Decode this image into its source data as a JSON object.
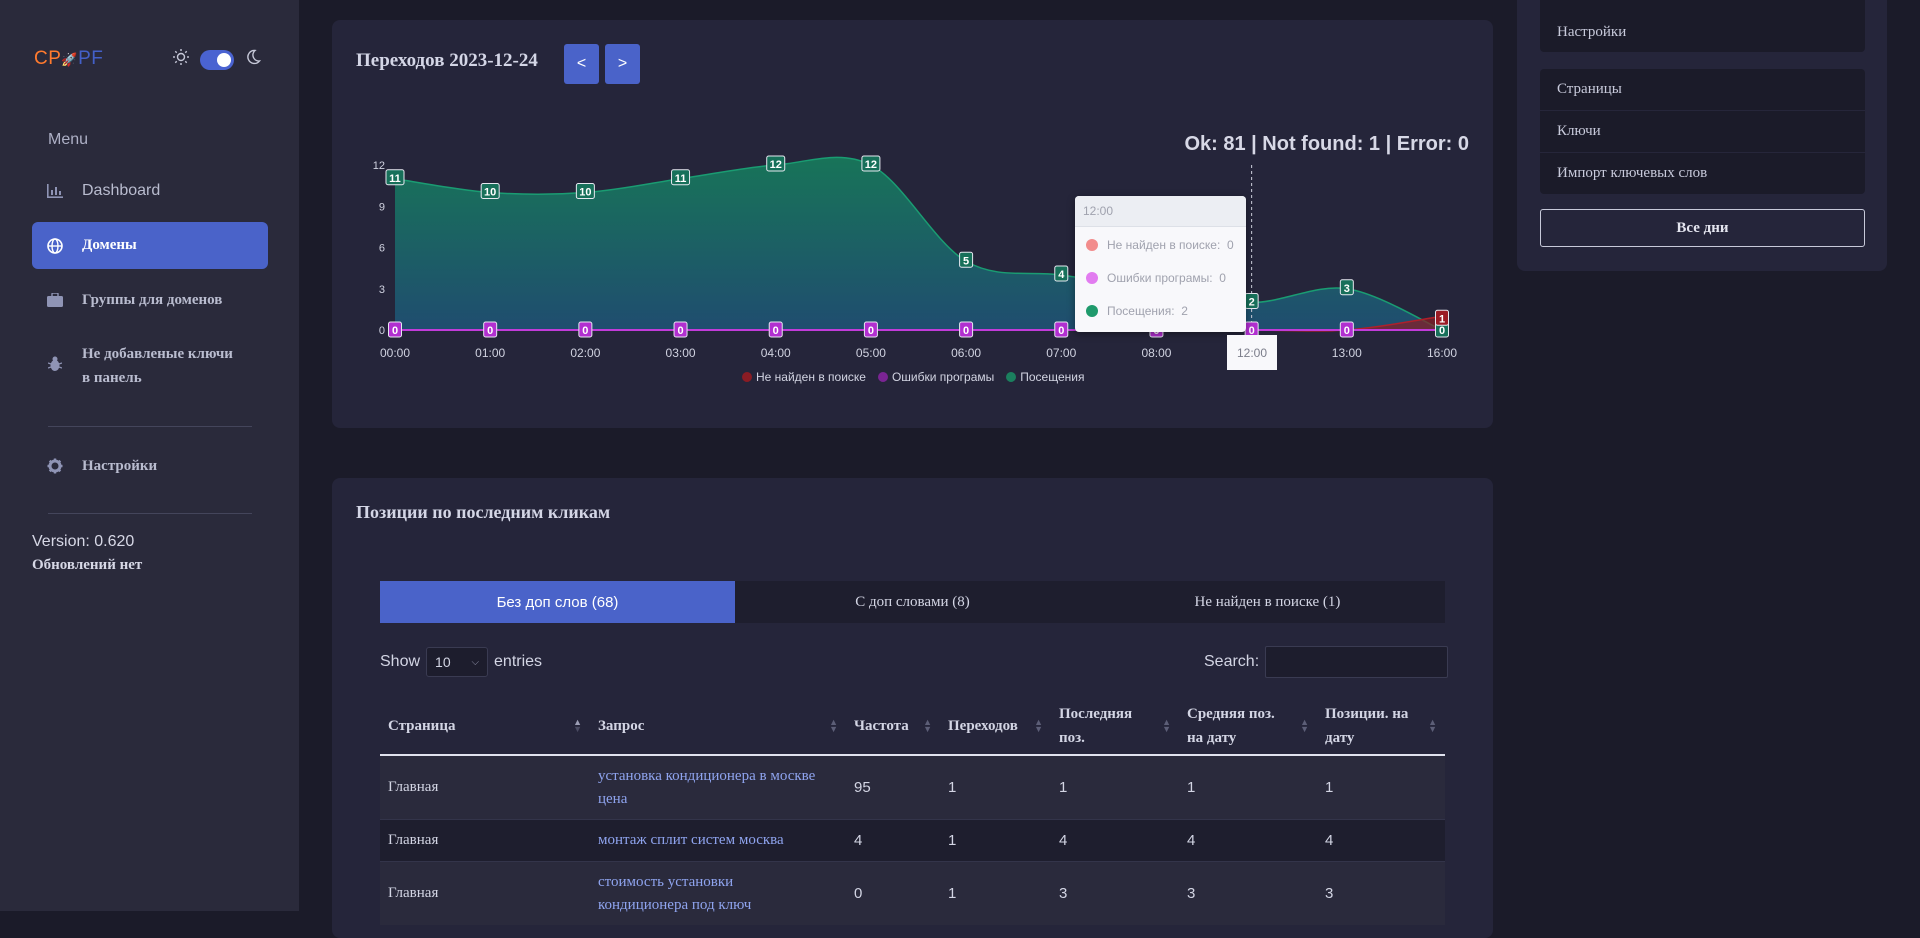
{
  "sidebar": {
    "logo_a": "CP",
    "logo_b": "PF",
    "menu_label": "Menu",
    "items": [
      {
        "label": "Dashboard",
        "icon": "chart-icon"
      },
      {
        "label": "Домены",
        "icon": "globe-icon"
      },
      {
        "label": "Группы для доменов",
        "icon": "briefcase-icon"
      },
      {
        "label_line1": "Не добавленые ключи",
        "label_line2": "в панель",
        "icon": "bug-icon"
      },
      {
        "label": "Настройки",
        "icon": "gear-icon"
      }
    ],
    "version": "Version: 0.620",
    "updates": "Обновлений нет"
  },
  "chart_card": {
    "title": "Переходов 2023-12-24",
    "prev": "<",
    "next": ">",
    "stats": "Ok: 81 | Not found: 1 | Error: 0"
  },
  "chart_data": {
    "type": "area",
    "categories": [
      "00:00",
      "01:00",
      "02:00",
      "03:00",
      "04:00",
      "05:00",
      "06:00",
      "07:00",
      "08:00",
      "12:00",
      "13:00",
      "16:00"
    ],
    "yticks": [
      0,
      3,
      6,
      9,
      12
    ],
    "ylim": [
      0,
      12
    ],
    "series": [
      {
        "name": "Не найден в поиске",
        "color": "#b01f2a",
        "values": [
          0,
          0,
          0,
          0,
          0,
          0,
          0,
          0,
          0,
          0,
          0,
          1
        ]
      },
      {
        "name": "Ошибки програмы",
        "color": "#b12fd0",
        "values": [
          0,
          0,
          0,
          0,
          0,
          0,
          0,
          0,
          0,
          0,
          0,
          0
        ]
      },
      {
        "name": "Посещения",
        "color": "#1a9c72",
        "values": [
          11,
          10,
          10,
          11,
          12,
          12,
          5,
          4,
          null,
          2,
          3,
          0
        ]
      }
    ],
    "legend_position": "bottom",
    "tooltip": {
      "header": "12:00",
      "rows": [
        {
          "label": "Не найден в поиске:",
          "value": "0",
          "color": "#f28c8c"
        },
        {
          "label": "Ошибки програмы:",
          "value": "0",
          "color": "#e27cf0"
        },
        {
          "label": "Посещения:",
          "value": "2",
          "color": "#1f9a6c"
        }
      ],
      "x_label": "12:00"
    }
  },
  "right_panel": {
    "top_item": "Настройки",
    "items": [
      "Страницы",
      "Ключи",
      "Импорт ключевых слов"
    ],
    "all_days": "Все дни"
  },
  "positions": {
    "title": "Позиции по последним кликам",
    "tabs": [
      "Без доп слов (68)",
      "С доп словами (8)",
      "Не найден в поиске (1)"
    ],
    "show_label": "Show",
    "show_value": "10",
    "entries_label": "entries",
    "search_label": "Search:",
    "columns": [
      {
        "line1": "Страница",
        "line2": ""
      },
      {
        "line1": "Запрос",
        "line2": ""
      },
      {
        "line1": "Частота",
        "line2": ""
      },
      {
        "line1": "Переходов",
        "line2": ""
      },
      {
        "line1": "Последняя",
        "line2": "поз."
      },
      {
        "line1": "Средняя поз.",
        "line2": "на дату"
      },
      {
        "line1": "Позиции. на",
        "line2": "дату"
      }
    ],
    "rows": [
      {
        "page": "Главная",
        "query_line1": "установка кондиционера в москве",
        "query_line2": "цена",
        "freq": "95",
        "clicks": "1",
        "last": "1",
        "avg": "1",
        "pos": "1"
      },
      {
        "page": "Главная",
        "query_line1": "монтаж сплит систем москва",
        "query_line2": "",
        "freq": "4",
        "clicks": "1",
        "last": "4",
        "avg": "4",
        "pos": "4"
      },
      {
        "page": "Главная",
        "query_line1": "стоимость установки",
        "query_line2": "кондиционера под ключ",
        "freq": "0",
        "clicks": "1",
        "last": "3",
        "avg": "3",
        "pos": "3"
      }
    ]
  }
}
